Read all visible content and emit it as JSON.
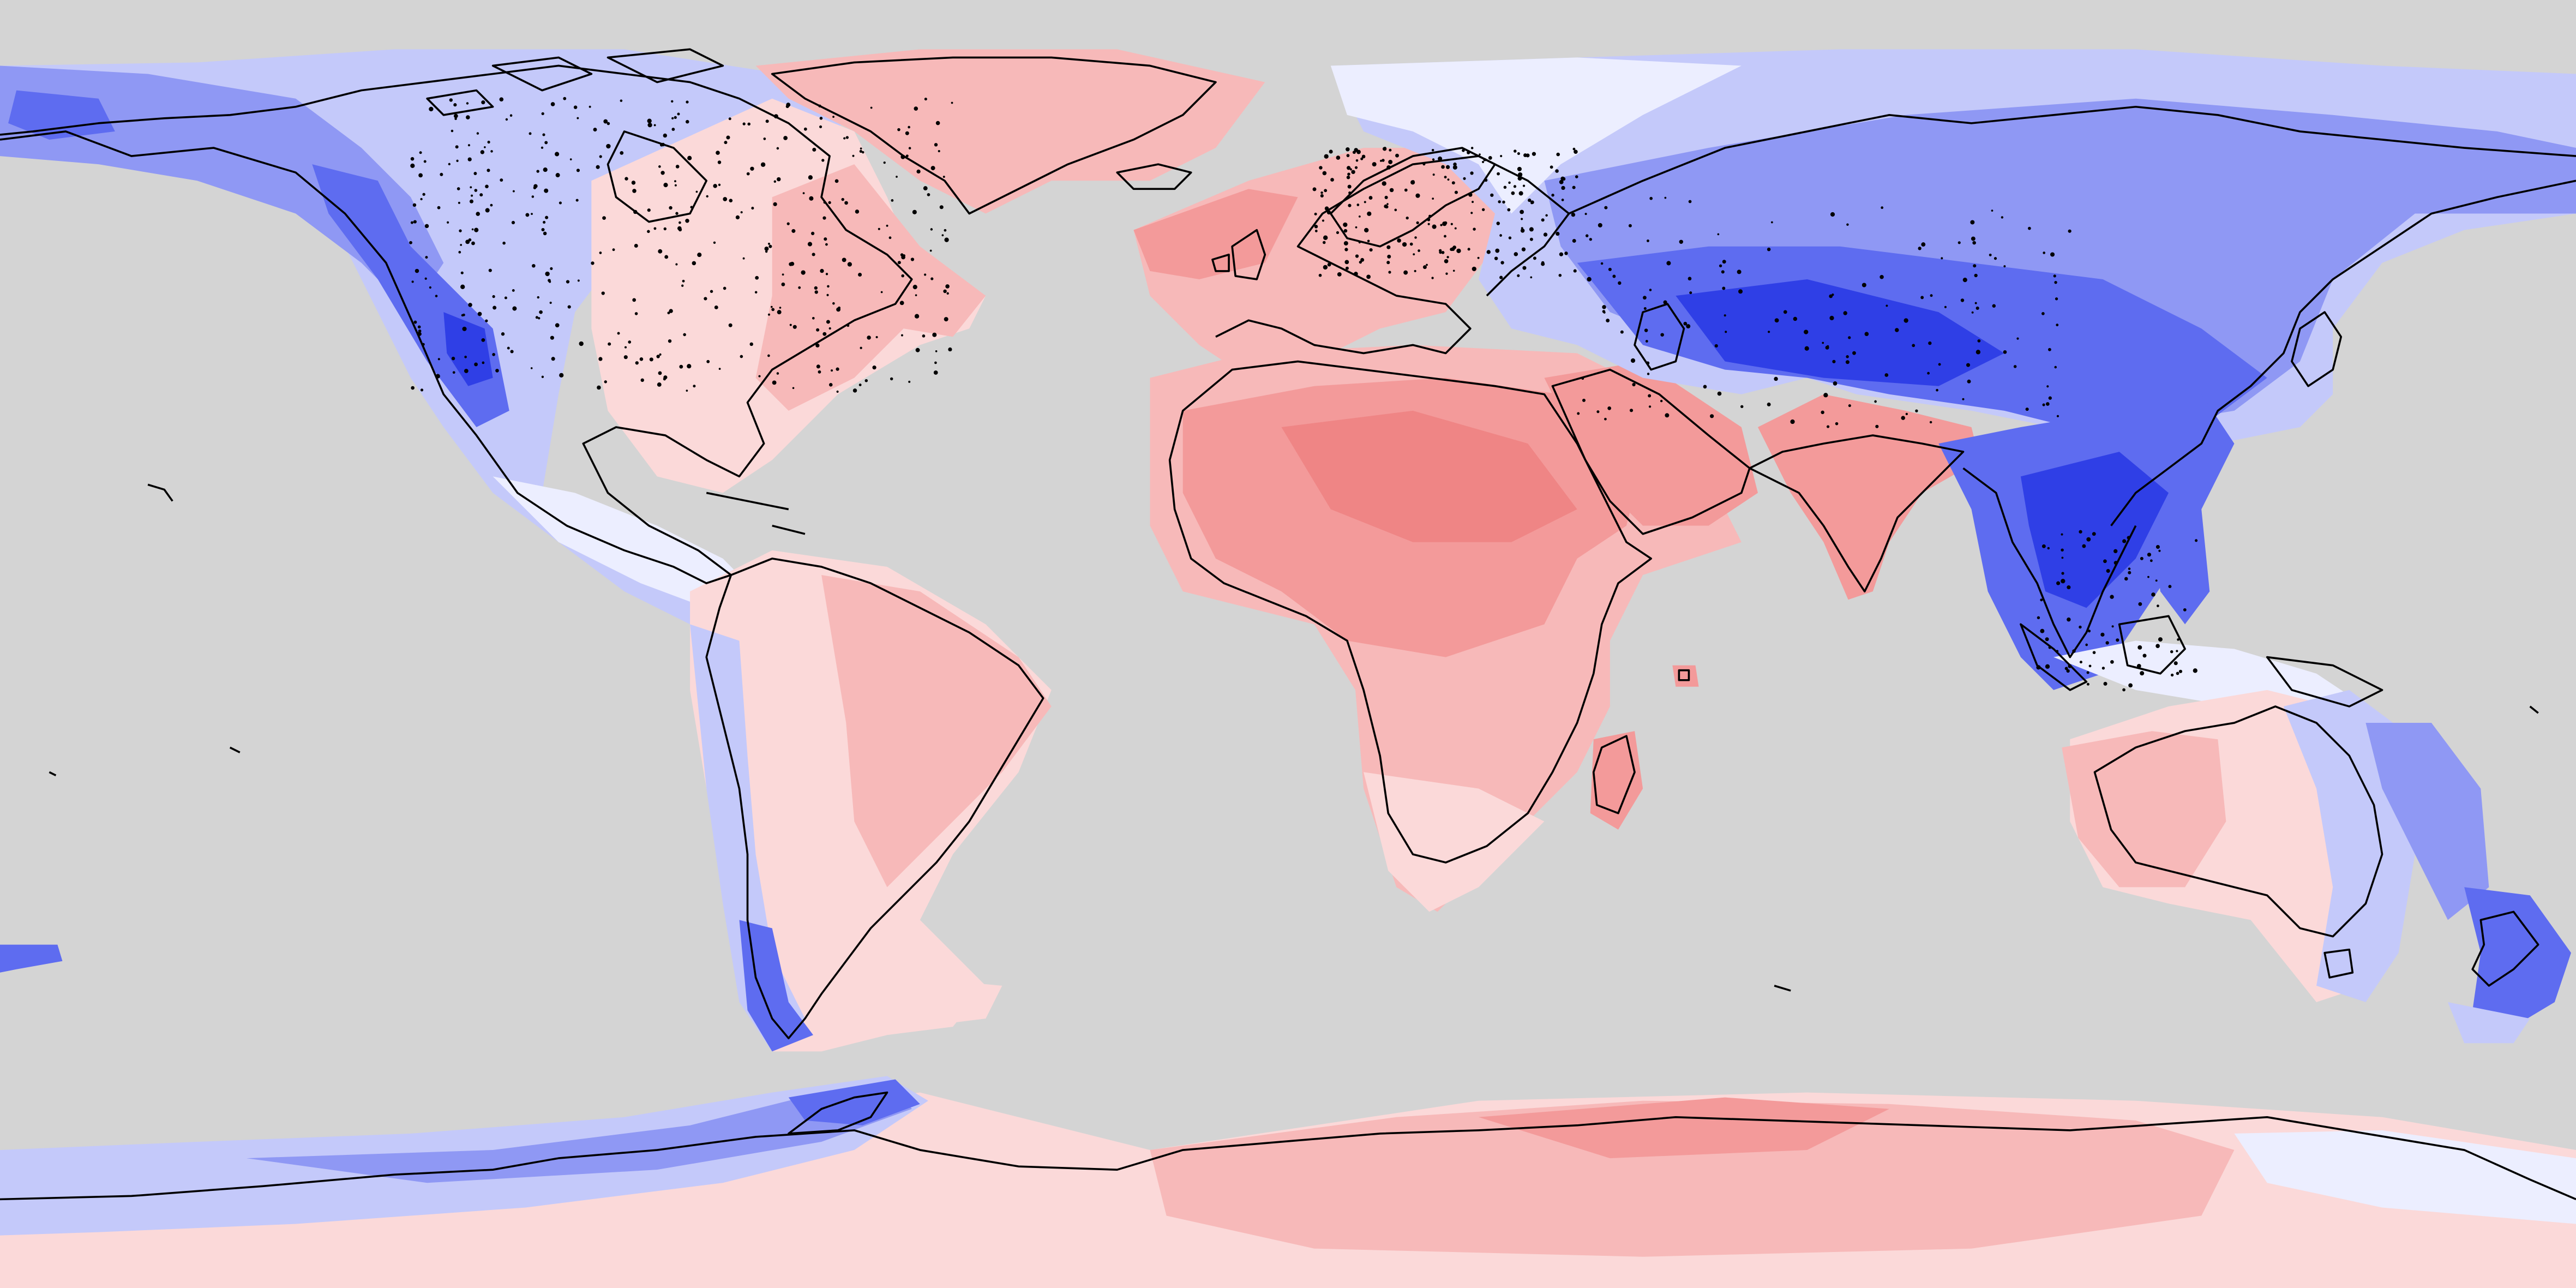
{
  "map": {
    "projection": "equirectangular",
    "ocean_color": "#d4d4d4",
    "coastline_color": "#000000",
    "palette": {
      "strong_blue": "#2f3fe6",
      "blue": "#5e6cf0",
      "mid_blue": "#8f98f4",
      "light_blue": "#c4c9fa",
      "pale_blue": "#eceeff",
      "neutral": "#fdf4f4",
      "pale_red": "#fbd9d9",
      "light_red": "#f7b9b9",
      "red": "#f39a9a",
      "strong_red": "#ef8585"
    },
    "legend": null,
    "title": null
  }
}
